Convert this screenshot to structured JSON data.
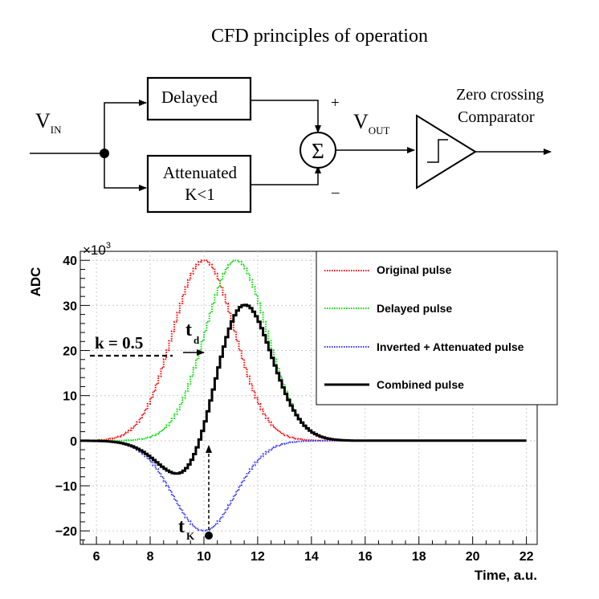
{
  "title": "CFD principles of operation",
  "diagram": {
    "vin": "V",
    "vin_sub": "IN",
    "vout": "V",
    "vout_sub": "OUT",
    "delayed_label": "Delayed",
    "attenuated_line1": "Attenuated",
    "attenuated_line2": "K<1",
    "sum_symbol": "Σ",
    "plus": "+",
    "minus": "–",
    "comparator_line1": "Zero crossing",
    "comparator_line2": "Comparator"
  },
  "chart_data": {
    "type": "line",
    "ylabel": "ADC",
    "xlabel": "Time, a.u.",
    "yscale_label": "×10",
    "yscale_exp": "3",
    "xlim": [
      5.4,
      22.4
    ],
    "ylim": [
      -23,
      42
    ],
    "xticks": [
      6,
      8,
      10,
      12,
      14,
      16,
      18,
      20,
      22
    ],
    "yticks": [
      -20,
      -10,
      0,
      10,
      20,
      30,
      40
    ],
    "ytick_labels": [
      "−20",
      "−10",
      "0",
      "10",
      "20",
      "30",
      "40"
    ],
    "grid": true,
    "legend_position": "top-right",
    "series": [
      {
        "name": "Original pulse",
        "color": "#ff0000",
        "style": "dotted",
        "center": 10.0,
        "amplitude": 40,
        "sigma": 1.15
      },
      {
        "name": "Delayed pulse",
        "color": "#00dd00",
        "style": "dotted",
        "center": 11.2,
        "amplitude": 40,
        "sigma": 1.15
      },
      {
        "name": "Inverted + Attenuated pulse",
        "color": "#3333ff",
        "style": "dotted",
        "center": 10.0,
        "amplitude": -20,
        "sigma": 1.15
      },
      {
        "name": "Combined pulse",
        "color": "#000000",
        "style": "solid",
        "components": [
          "Delayed pulse",
          "Inverted + Attenuated pulse"
        ]
      }
    ],
    "annotations": {
      "k_label": "k = 0.5",
      "k_level": 20,
      "td_label": "t",
      "td_sub": "d",
      "tk_label": "t",
      "tk_sub": "K",
      "tk_x": 10.0
    }
  }
}
